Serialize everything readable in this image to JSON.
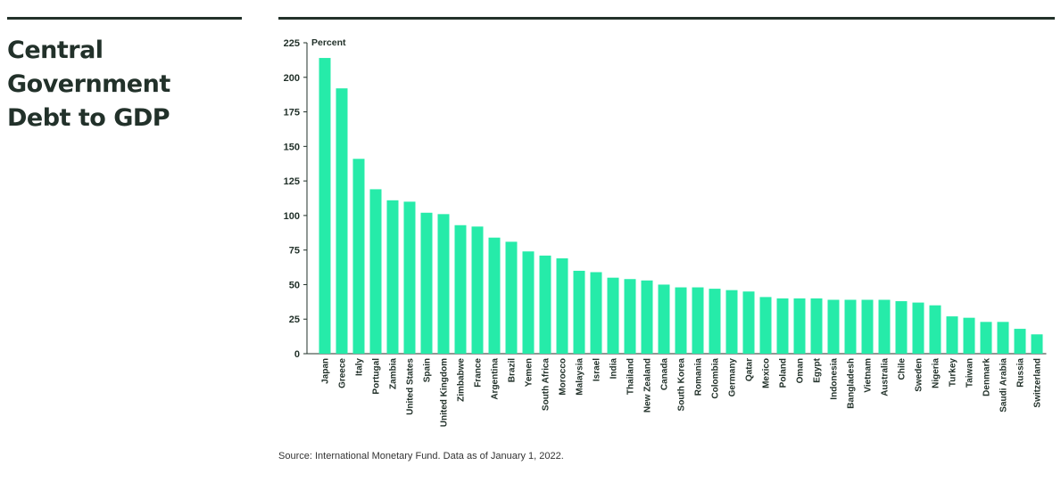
{
  "title": "Central Government Debt to GDP",
  "source": "Source: International Monetary Fund. Data as of January 1, 2022.",
  "colors": {
    "bar": "#26eba9",
    "text": "#22312a",
    "rule": "#22312a"
  },
  "chart_data": {
    "type": "bar",
    "title": "Central Government Debt to GDP",
    "ylabel": "Percent",
    "xlabel": "",
    "ylim": [
      0,
      225
    ],
    "yticks": [
      0,
      25,
      50,
      75,
      100,
      125,
      150,
      175,
      200,
      225
    ],
    "grid": false,
    "categories": [
      "Japan",
      "Greece",
      "Italy",
      "Portugal",
      "Zambia",
      "United States",
      "Spain",
      "United Kingdom",
      "Zimbabwe",
      "France",
      "Argentina",
      "Brazil",
      "Yemen",
      "South Africa",
      "Morocco",
      "Malaysia",
      "Israel",
      "India",
      "Thailand",
      "New Zealand",
      "Canada",
      "South Korea",
      "Romania",
      "Colombia",
      "Germany",
      "Qatar",
      "Mexico",
      "Poland",
      "Oman",
      "Egypt",
      "Indonesia",
      "Bangladesh",
      "Vietnam",
      "Australia",
      "Chile",
      "Sweden",
      "Nigeria",
      "Turkey",
      "Taiwan",
      "Denmark",
      "Saudi Arabia",
      "Russia",
      "Switzerland"
    ],
    "values": [
      214,
      192,
      141,
      119,
      111,
      110,
      102,
      101,
      93,
      92,
      84,
      81,
      74,
      71,
      69,
      60,
      59,
      55,
      54,
      53,
      50,
      48,
      48,
      47,
      46,
      45,
      41,
      40,
      40,
      40,
      39,
      39,
      39,
      39,
      38,
      37,
      35,
      27,
      26,
      23,
      23,
      18,
      14
    ]
  }
}
